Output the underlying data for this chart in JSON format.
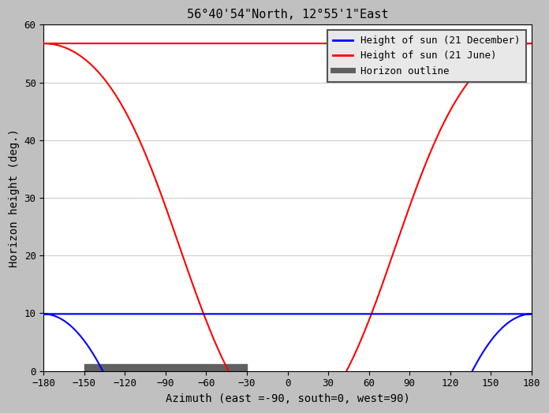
{
  "title": "56°40'54\"North, 12°55'1\"East",
  "xlabel": "Azimuth (east =-90, south=0, west=90)",
  "ylabel": "Horizon height (deg.)",
  "xlim": [
    -180,
    180
  ],
  "ylim": [
    0,
    60
  ],
  "xticks": [
    -180,
    -150,
    -120,
    -90,
    -60,
    -30,
    0,
    30,
    60,
    90,
    120,
    150,
    180
  ],
  "yticks": [
    0,
    10,
    20,
    30,
    40,
    50,
    60
  ],
  "bg_outer": "#c0c0c0",
  "bg_plot": "#ffffff",
  "june_color": "#ff0000",
  "december_color": "#0000ff",
  "horizon_color": "#606060",
  "legend_labels": [
    "Height of sun (21 December)",
    "Height of sun (21 June)",
    "Horizon outline"
  ],
  "legend_colors": [
    "#0000ff",
    "#ff0000",
    "#606060"
  ],
  "title_fontsize": 11,
  "axis_fontsize": 10,
  "tick_fontsize": 9,
  "horizon_x1": -150,
  "horizon_x2": -30
}
